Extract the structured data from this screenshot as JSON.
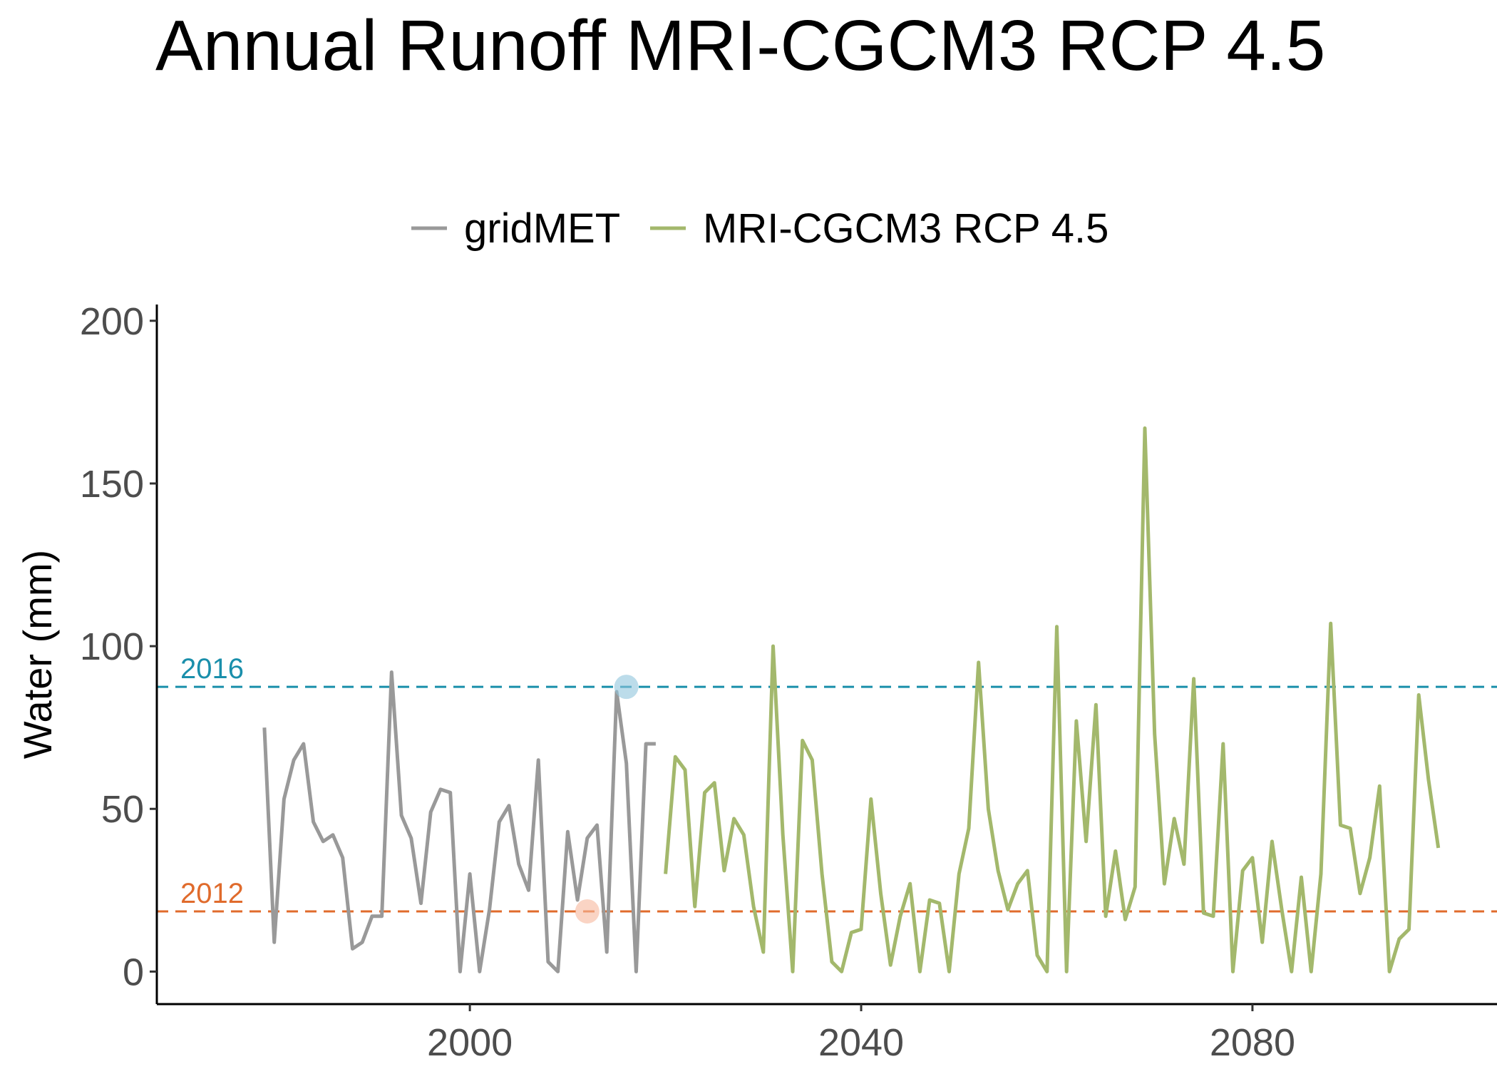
{
  "chart_data": {
    "type": "line",
    "title": "Annual Runoff MRI-CGCM3 RCP 4.5",
    "xlabel": "",
    "ylabel": "Water (mm)",
    "xlim": [
      1968,
      2105
    ],
    "ylim": [
      -10,
      205
    ],
    "xticks": [
      2000,
      2040,
      2080
    ],
    "yticks": [
      0,
      50,
      100,
      150,
      200
    ],
    "legend_position": "top",
    "grid": false,
    "series": [
      {
        "name": "gridMET",
        "color": "#999999",
        "x": [
          1979,
          1980,
          1981,
          1982,
          1983,
          1984,
          1985,
          1986,
          1987,
          1988,
          1989,
          1990,
          1991,
          1992,
          1993,
          1994,
          1995,
          1996,
          1997,
          1998,
          1999,
          2000,
          2001,
          2002,
          2003,
          2004,
          2005,
          2006,
          2007,
          2008,
          2009,
          2010,
          2011,
          2012,
          2013,
          2014,
          2015,
          2016,
          2017,
          2018,
          2019
        ],
        "values": [
          75,
          9,
          53,
          65,
          70,
          46,
          40,
          42,
          35,
          7,
          9,
          17,
          17,
          92,
          48,
          41,
          21,
          49,
          56,
          55,
          0,
          30,
          0,
          19,
          46,
          51,
          33,
          25,
          65,
          3,
          0,
          43,
          22,
          41,
          45,
          6,
          86,
          64,
          0,
          70,
          70
        ]
      },
      {
        "name": "MRI-CGCM3 RCP 4.5",
        "color": "#a3b86c",
        "x": [
          2020,
          2021,
          2022,
          2023,
          2024,
          2025,
          2026,
          2027,
          2028,
          2029,
          2030,
          2031,
          2032,
          2033,
          2034,
          2035,
          2036,
          2037,
          2038,
          2039,
          2040,
          2041,
          2042,
          2043,
          2044,
          2045,
          2046,
          2047,
          2048,
          2049,
          2050,
          2051,
          2052,
          2053,
          2054,
          2055,
          2056,
          2057,
          2058,
          2059,
          2060,
          2061,
          2062,
          2063,
          2064,
          2065,
          2066,
          2067,
          2068,
          2069,
          2070,
          2071,
          2072,
          2073,
          2074,
          2075,
          2076,
          2077,
          2078,
          2079,
          2080,
          2081,
          2082,
          2083,
          2084,
          2085,
          2086,
          2087,
          2088,
          2089,
          2090,
          2091,
          2092,
          2093,
          2094,
          2095,
          2096,
          2097,
          2098,
          2099
        ],
        "values": [
          30,
          66,
          62,
          20,
          55,
          58,
          31,
          47,
          42,
          20,
          6,
          100,
          42,
          0,
          71,
          65,
          30,
          3,
          0,
          12,
          13,
          53,
          24,
          2,
          17,
          27,
          0,
          22,
          21,
          0,
          30,
          44,
          95,
          50,
          31,
          19,
          27,
          31,
          5,
          0,
          106,
          0,
          77,
          40,
          82,
          17,
          37,
          16,
          26,
          167,
          73,
          27,
          47,
          33,
          90,
          18,
          17,
          70,
          0,
          31,
          35,
          9,
          40,
          19,
          0,
          29,
          0,
          30,
          107,
          45,
          44,
          24,
          35,
          57,
          0,
          10,
          13,
          85,
          59,
          38
        ]
      }
    ],
    "reference_lines": [
      {
        "label": "2016",
        "value": 87.5,
        "color": "#1a8fab",
        "marker_x": 2016,
        "marker_color": "#8fc5dc"
      },
      {
        "label": "2012",
        "value": 18.5,
        "color": "#e06b2c",
        "marker_x": 2012,
        "marker_color": "#f7b89c"
      }
    ]
  }
}
